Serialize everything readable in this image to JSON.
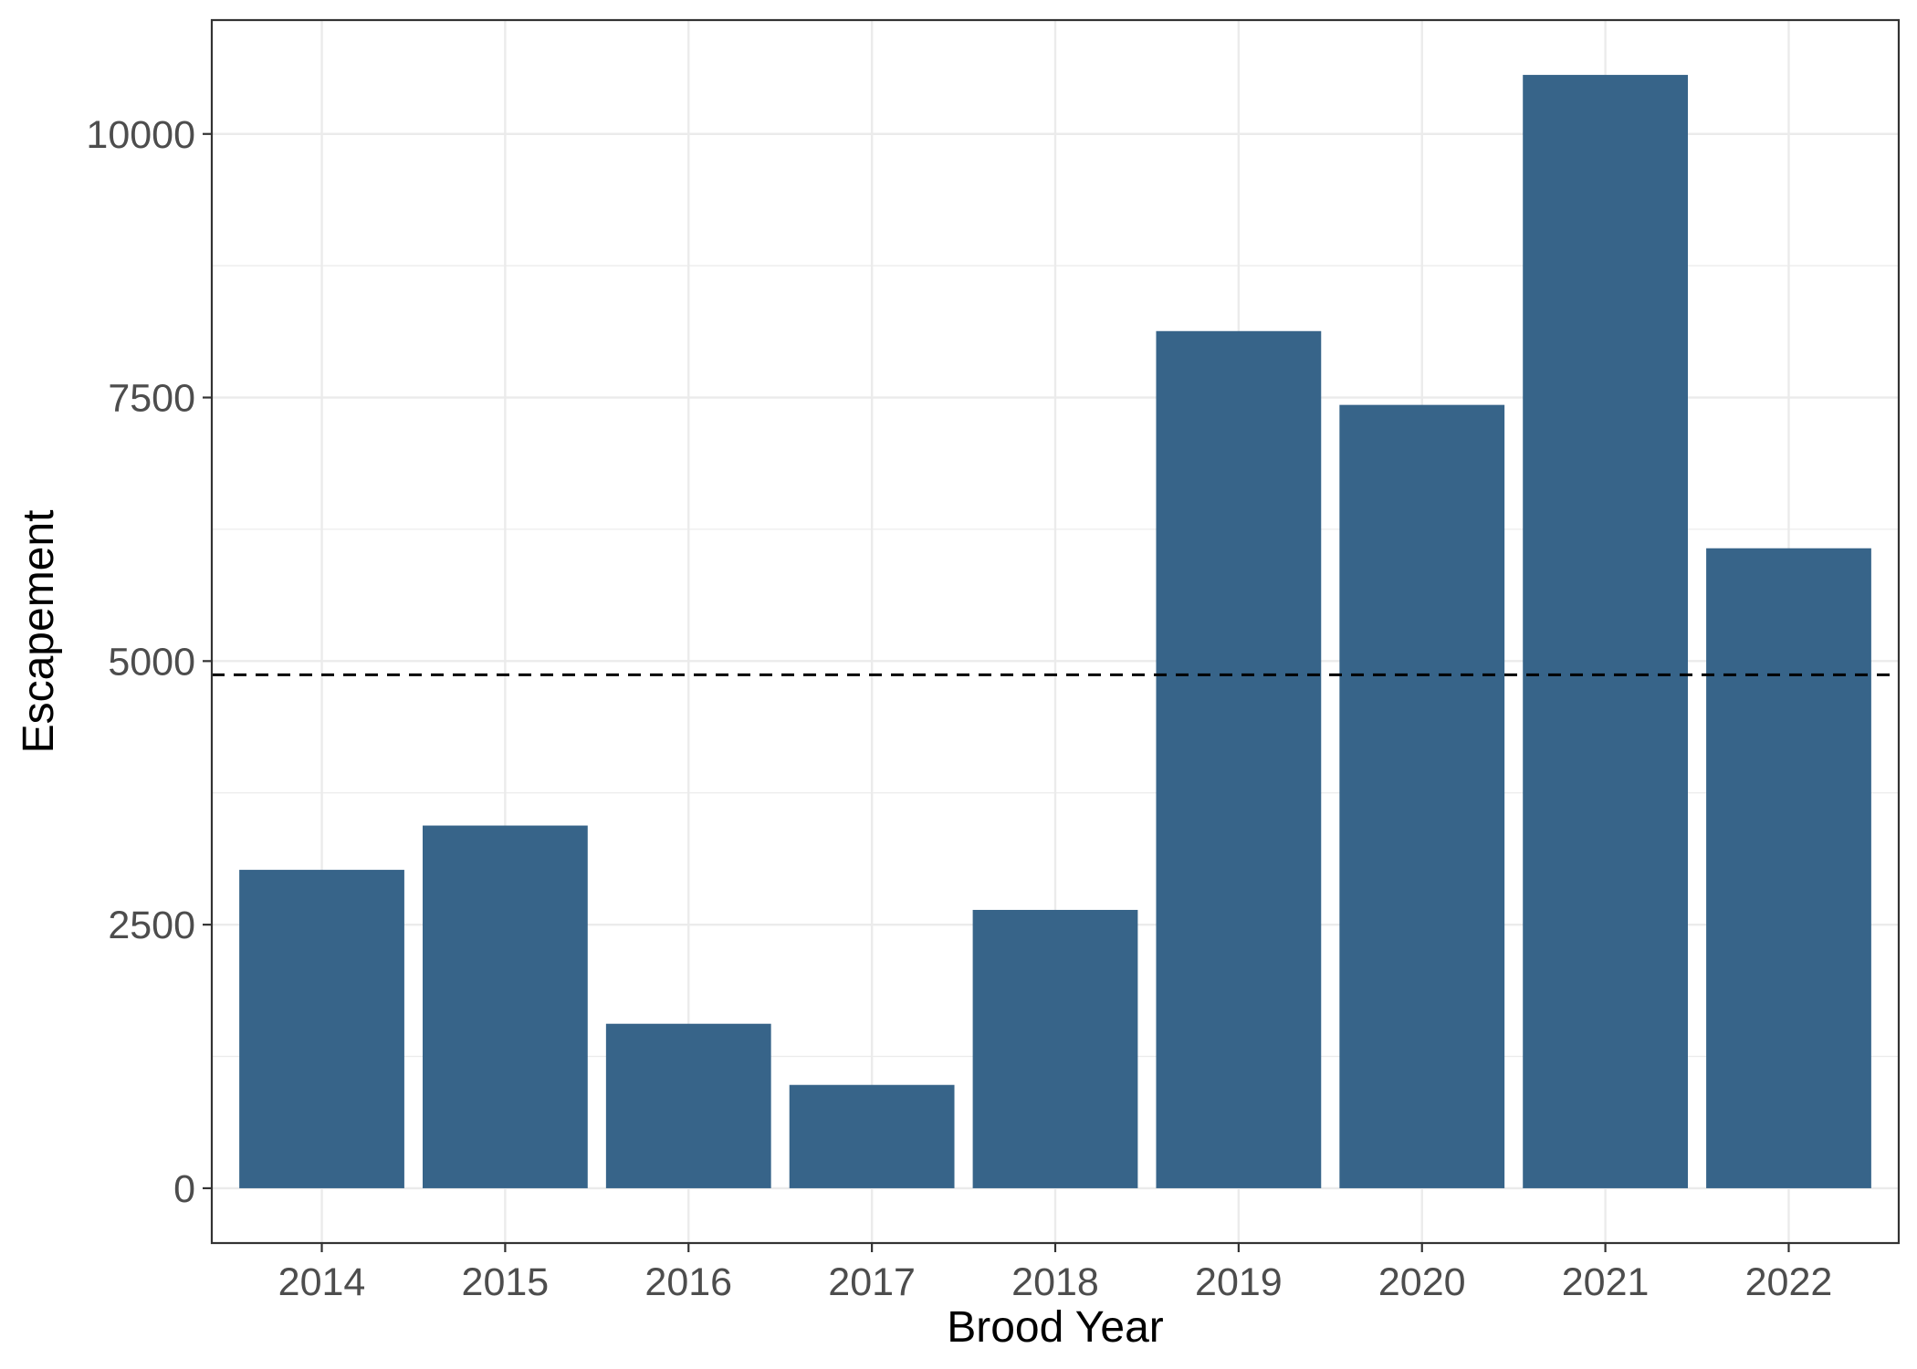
{
  "chart_data": {
    "type": "bar",
    "xlabel": "Brood Year",
    "ylabel": "Escapement",
    "categories": [
      "2014",
      "2015",
      "2016",
      "2017",
      "2018",
      "2019",
      "2020",
      "2021",
      "2022"
    ],
    "values": [
      3020,
      3440,
      1560,
      980,
      2640,
      8130,
      7430,
      10560,
      6070
    ],
    "ylim": [
      -520,
      11080
    ],
    "yticks": [
      0,
      2500,
      5000,
      7500,
      10000
    ],
    "ytick_labels": [
      "0",
      "2500",
      "5000",
      "7500",
      "10000"
    ],
    "reference_line": {
      "value": 4870,
      "style": "dashed",
      "color": "#000000"
    },
    "grid": true,
    "bar_color": "#376489",
    "grid_color": "#ebebeb",
    "background": "#ffffff"
  }
}
